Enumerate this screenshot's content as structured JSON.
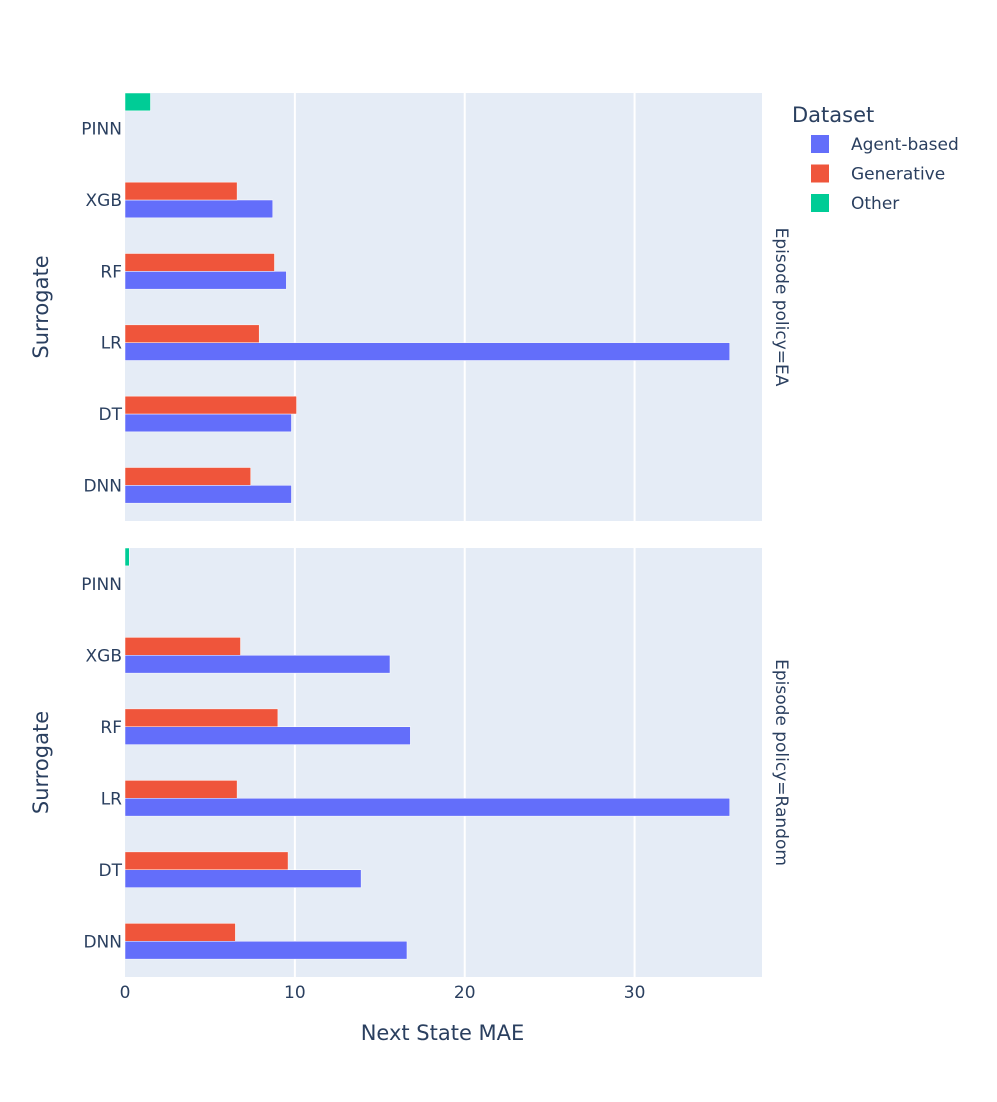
{
  "chart_data": {
    "type": "bar",
    "orientation": "horizontal",
    "categories": [
      "DNN",
      "DT",
      "LR",
      "RF",
      "XGB",
      "PINN"
    ],
    "xlabel": "Next State MAE",
    "ylabel": "Surrogate",
    "xlim": [
      0,
      37.5
    ],
    "xticks": [
      0,
      10,
      20,
      30
    ],
    "legend": {
      "title": "Dataset",
      "placement": "top-right"
    },
    "series_colors": {
      "Agent-based": "#636efa",
      "Generative": "#ef553b",
      "Other": "#00cc96"
    },
    "panels": [
      {
        "facet_label": "Episode policy=EA",
        "series": [
          {
            "name": "Agent-based",
            "values": [
              9.8,
              9.8,
              35.6,
              9.5,
              8.7,
              null
            ]
          },
          {
            "name": "Generative",
            "values": [
              7.4,
              10.1,
              7.9,
              8.8,
              6.6,
              null
            ]
          },
          {
            "name": "Other",
            "values": [
              null,
              null,
              null,
              null,
              null,
              1.5
            ]
          }
        ]
      },
      {
        "facet_label": "Episode policy=Random",
        "series": [
          {
            "name": "Agent-based",
            "values": [
              16.6,
              13.9,
              35.6,
              16.8,
              15.6,
              null
            ]
          },
          {
            "name": "Generative",
            "values": [
              6.5,
              9.6,
              6.6,
              9.0,
              6.8,
              null
            ]
          },
          {
            "name": "Other",
            "values": [
              null,
              null,
              null,
              null,
              null,
              0.25
            ]
          }
        ]
      }
    ]
  }
}
